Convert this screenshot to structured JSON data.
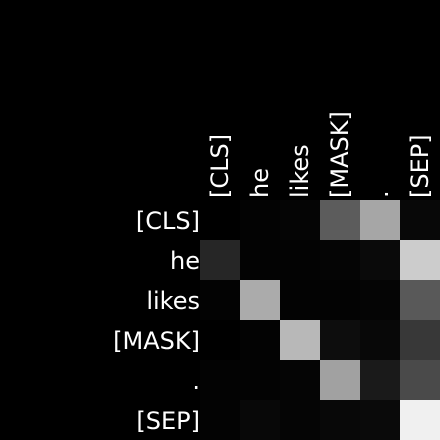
{
  "chart_data": {
    "type": "heatmap",
    "title": "",
    "xlabel": "",
    "ylabel": "",
    "x_labels": [
      "[CLS]",
      "he",
      "likes",
      "[MASK]",
      ".",
      "[SEP]"
    ],
    "y_labels": [
      "[CLS]",
      "he",
      "likes",
      "[MASK]",
      ".",
      "[SEP]"
    ],
    "colormap": "grayscale (black = 0, white = 1)",
    "value_range": [
      0,
      1
    ],
    "values": [
      [
        0.0,
        0.01,
        0.02,
        0.36,
        0.65,
        0.03
      ],
      [
        0.15,
        0.01,
        0.01,
        0.02,
        0.04,
        0.8
      ],
      [
        0.01,
        0.67,
        0.01,
        0.01,
        0.02,
        0.35
      ],
      [
        0.0,
        0.01,
        0.72,
        0.05,
        0.03,
        0.22
      ],
      [
        0.01,
        0.01,
        0.02,
        0.63,
        0.1,
        0.29
      ],
      [
        0.01,
        0.03,
        0.02,
        0.03,
        0.04,
        0.94
      ]
    ]
  }
}
